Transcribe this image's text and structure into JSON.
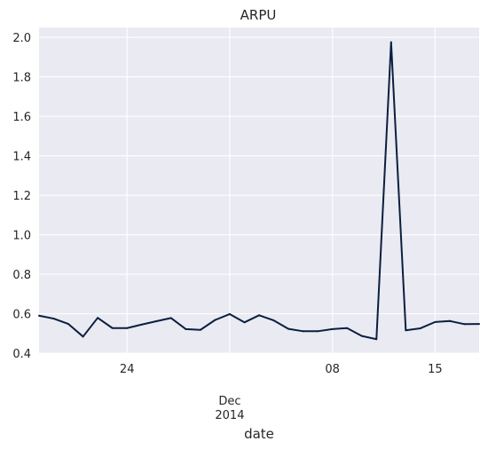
{
  "chart_data": {
    "type": "line",
    "title": "ARPU",
    "xlabel": "date",
    "ylabel": "",
    "ylim": [
      0.4,
      2.05
    ],
    "xlim": [
      "2014-11-18",
      "2014-12-18"
    ],
    "grid": true,
    "y_ticks": [
      "0.4",
      "0.6",
      "0.8",
      "1.0",
      "1.2",
      "1.4",
      "1.6",
      "1.8",
      "2.0"
    ],
    "x_ticks": [
      {
        "date": "2014-11-24",
        "label": "24"
      },
      {
        "date": "2014-12-01",
        "label": "Dec\n2014"
      },
      {
        "date": "2014-12-08",
        "label": "08"
      },
      {
        "date": "2014-12-15",
        "label": "15"
      }
    ],
    "colors": {
      "line": "#0b1f3f",
      "plot_bg": "#eaeaf2",
      "grid": "#ffffff"
    },
    "series": [
      {
        "x": [
          "2014-11-18",
          "2014-11-19",
          "2014-11-20",
          "2014-11-21",
          "2014-11-22",
          "2014-11-23",
          "2014-11-24",
          "2014-11-25",
          "2014-11-26",
          "2014-11-27",
          "2014-11-28",
          "2014-11-29",
          "2014-11-30",
          "2014-12-01",
          "2014-12-02",
          "2014-12-03",
          "2014-12-04",
          "2014-12-05",
          "2014-12-06",
          "2014-12-07",
          "2014-12-08",
          "2014-12-09",
          "2014-12-10",
          "2014-12-11",
          "2014-12-12",
          "2014-12-13",
          "2014-12-14",
          "2014-12-15",
          "2014-12-16",
          "2014-12-17",
          "2014-12-18"
        ],
        "values": [
          0.59,
          0.575,
          0.548,
          0.484,
          0.579,
          0.527,
          0.527,
          0.545,
          0.562,
          0.578,
          0.522,
          0.518,
          0.568,
          0.598,
          0.556,
          0.592,
          0.566,
          0.523,
          0.511,
          0.511,
          0.522,
          0.527,
          0.487,
          0.471,
          1.975,
          0.516,
          0.526,
          0.558,
          0.563,
          0.547,
          0.548
        ]
      }
    ]
  }
}
